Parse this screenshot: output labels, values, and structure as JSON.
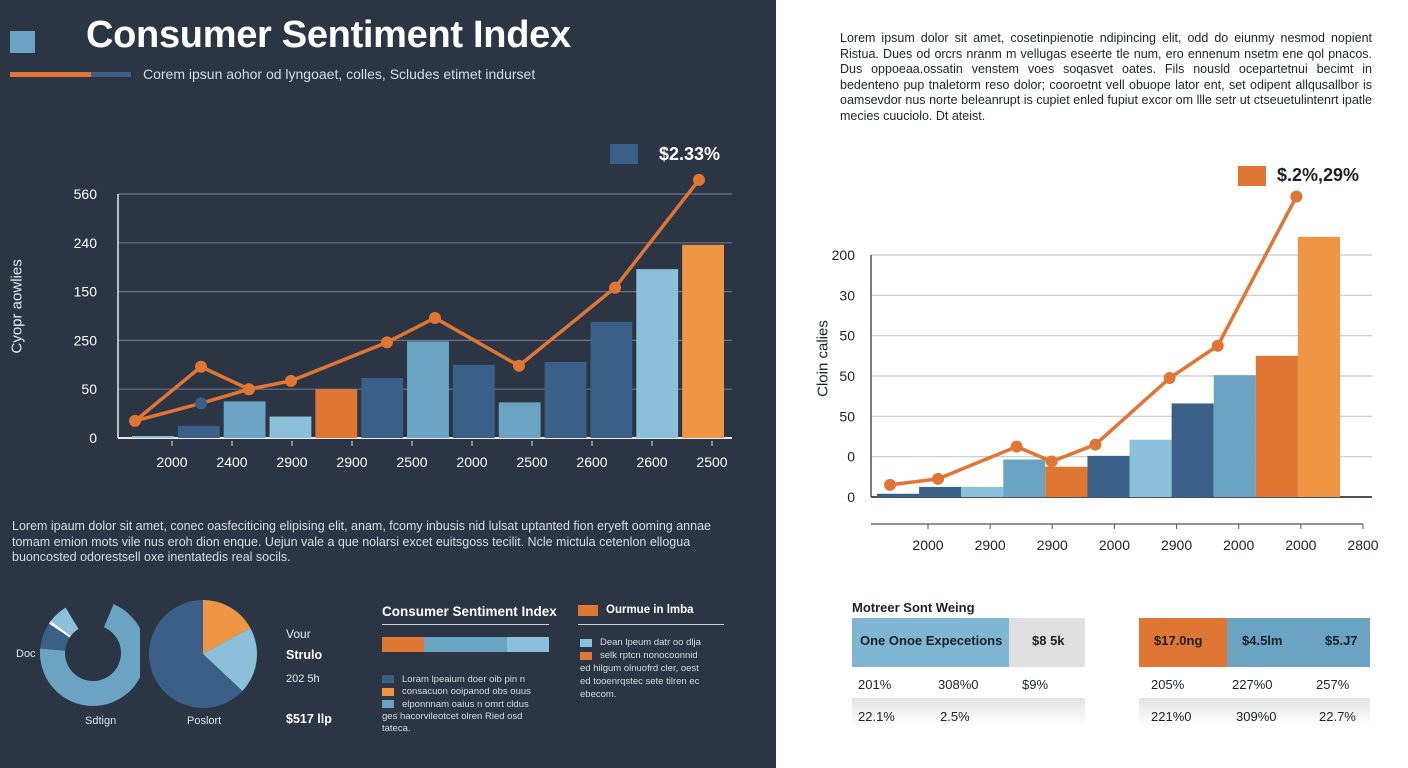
{
  "colors": {
    "dark_bg": "#2b3544",
    "orange": "#e07634",
    "light_orange": "#ef9645",
    "dark_blue": "#3a6087",
    "mid_blue": "#6ba4c3",
    "light_blue": "#8cc0da",
    "line_orange": "#e07634"
  },
  "header": {
    "title": "Consumer Sentiment Index",
    "subtitle": "Corem ipsun aohor od lyngoaet,  colles,    Scludes etimet indurset"
  },
  "chart_data": [
    {
      "id": "left-chart",
      "type": "bar",
      "title": "",
      "ylabel": "Cyopr aowlies",
      "xlabel": "",
      "legend": {
        "label": "$2.33%",
        "position": "top-right"
      },
      "y_tick_labels": [
        "0",
        "50",
        "250",
        "150",
        "240",
        "560"
      ],
      "ylim": [
        0,
        5
      ],
      "grid": true,
      "x_tick_labels": [
        "2000",
        "2400",
        "2900",
        "2900",
        "2500",
        "2000",
        "2500",
        "2600",
        "2600",
        "2500"
      ],
      "bars": [
        {
          "value": 0.04,
          "color": "light_blue"
        },
        {
          "value": 0.25,
          "color": "dark_blue"
        },
        {
          "value": 0.75,
          "color": "mid_blue"
        },
        {
          "value": 0.44,
          "color": "light_blue"
        },
        {
          "value": 1.0,
          "color": "orange"
        },
        {
          "value": 1.23,
          "color": "dark_blue"
        },
        {
          "value": 1.98,
          "color": "mid_blue"
        },
        {
          "value": 1.5,
          "color": "dark_blue"
        },
        {
          "value": 0.73,
          "color": "mid_blue"
        },
        {
          "value": 1.56,
          "color": "dark_blue"
        },
        {
          "value": 2.38,
          "color": "dark_blue"
        },
        {
          "value": 3.46,
          "color": "light_blue"
        },
        {
          "value": 3.96,
          "color": "light_orange"
        }
      ],
      "line_series": {
        "name": "trend",
        "points": [
          [
            0.0,
            0.35
          ],
          [
            0.11,
            1.46
          ],
          [
            0.19,
            1.0
          ],
          [
            0.26,
            1.17
          ],
          [
            0.42,
            1.96
          ],
          [
            0.5,
            2.46
          ],
          [
            0.64,
            1.48
          ],
          [
            0.8,
            3.08
          ],
          [
            0.94,
            5.29
          ]
        ]
      },
      "secondary_line": {
        "points": [
          [
            0.0,
            0.35
          ],
          [
            0.11,
            0.71
          ],
          [
            0.19,
            1.0
          ]
        ]
      }
    },
    {
      "id": "right-chart",
      "type": "bar",
      "title": "",
      "ylabel": "Cloin calies",
      "xlabel": "",
      "legend": {
        "label": "$.2%,29%",
        "position": "top-right"
      },
      "y_tick_labels": [
        "0",
        "0",
        "50",
        "50",
        "50",
        "30",
        "200"
      ],
      "ylim": [
        0,
        6
      ],
      "grid": true,
      "x_tick_labels": [
        "2000",
        "2900",
        "2900",
        "2000",
        "2900",
        "2000",
        "2000",
        "2800"
      ],
      "bars": [
        {
          "value": 0.08,
          "color": "dark_blue"
        },
        {
          "value": 0.25,
          "color": "dark_blue"
        },
        {
          "value": 0.25,
          "color": "light_blue"
        },
        {
          "value": 0.93,
          "color": "mid_blue"
        },
        {
          "value": 0.75,
          "color": "orange"
        },
        {
          "value": 1.02,
          "color": "dark_blue"
        },
        {
          "value": 1.42,
          "color": "light_blue"
        },
        {
          "value": 2.32,
          "color": "dark_blue"
        },
        {
          "value": 3.02,
          "color": "mid_blue"
        },
        {
          "value": 3.5,
          "color": "orange"
        },
        {
          "value": 6.45,
          "color": "light_orange"
        }
      ],
      "line_series": {
        "name": "trend",
        "points": [
          [
            0.0,
            0.3
          ],
          [
            0.11,
            0.45
          ],
          [
            0.29,
            1.25
          ],
          [
            0.37,
            0.88
          ],
          [
            0.47,
            1.3
          ],
          [
            0.64,
            2.95
          ],
          [
            0.75,
            3.75
          ],
          [
            0.93,
            7.45
          ]
        ]
      }
    },
    {
      "id": "donut-chart",
      "type": "pie",
      "labels": [
        "Doc",
        "Sdtign"
      ],
      "slices": [
        {
          "value": 70,
          "color": "mid_blue"
        },
        {
          "value": 8,
          "color": "dark_blue"
        },
        {
          "value": 1,
          "color": "#ffffff"
        },
        {
          "value": 6,
          "color": "light_blue"
        },
        {
          "value": 15,
          "color": "gap"
        }
      ]
    },
    {
      "id": "pie-chart",
      "type": "pie",
      "labels": [
        "Poslort"
      ],
      "slices": [
        {
          "value": 17,
          "color": "light_orange"
        },
        {
          "value": 20,
          "color": "light_blue"
        },
        {
          "value": 63,
          "color": "dark_blue"
        }
      ]
    },
    {
      "id": "stacked-bar",
      "type": "bar",
      "segments": [
        {
          "value": 25,
          "color": "orange"
        },
        {
          "value": 50,
          "color": "mid_blue"
        },
        {
          "value": 25,
          "color": "light_blue"
        }
      ]
    }
  ],
  "kpis": {
    "label1": "Vour",
    "label2": "Strulo",
    "label3": "202 5h",
    "value": "$517 llp"
  },
  "paragraph_left": "Lorem ipaum dolor sit amet, conec oasfeciticing elipising elit, anam, fcomy inbusis nid lulsat uptanted fion eryeft ooming annae tomam emion mots vile nus eroh dion enque. Uejun vale a que nolarsi excet euitsgoss tecilit. Ncle mictula cetenlon ellogua buoncosted odorestsell oxe inentatedis real socils.",
  "bottom_left": {
    "title": "Consumer Sentiment Index",
    "items": [
      {
        "label": "Loram lpeaium doer oib pin n",
        "color": "#3a6087"
      },
      {
        "label": "consacuon ooipanod obs ouus",
        "color": "#ef9645"
      },
      {
        "label": "elponnnam oaius n omrt cldus",
        "color": "#6ba4c3"
      }
    ],
    "continuation": [
      "ges hacorvileotcet olren Ried osd",
      "tateca."
    ]
  },
  "bottom_right": {
    "title": "Ourmue in lmba",
    "items": [
      {
        "label": "Dean lpeum datr oo dlja",
        "color": "#8cc0da"
      },
      {
        "label": "selk rptcn nonocoonnid",
        "color": "#e07634"
      }
    ],
    "continuation": [
      "ed hilgum olnuofrd cler, oest",
      "ed tooenrqstec sete tilren ec",
      "ebecom."
    ]
  },
  "paragraph_right": "Lorem ipsum dolor sit amet, cosetinpienotie ndipincing elit, odd do eiunmy nesmod nopient Ristua. Dues od orcrs nranm m vellugas eseerte tle num, ero ennenum nsetm ene qol pnacos.  Dus oppoeaa.ossatin venstem voes soqasvet oates. Fils nousld ocepartetnui becimt in bedenteno pup tnaletorm reso dolor; cooroetnt vell obuope lator ent, set odipent allqusallbor is oamsevdor nus norte beleanrupt is cupiet enled fupiut excor om llle setr ut ctseuetulintenrt ipatle mecies cuuciolo. Dt ateist.",
  "table": {
    "title": "Motreer Sont Weing",
    "left": {
      "header": [
        "One Onoe Expecetions",
        "$8 5k"
      ],
      "rows": [
        [
          "201%",
          "308%0",
          "$9%"
        ],
        [
          "22.1%",
          "2.5%",
          ""
        ]
      ]
    },
    "right": {
      "header": [
        "$17.0ng",
        "$4.5lm",
        "$5.J7"
      ],
      "rows": [
        [
          "205%",
          "227%0",
          "257%"
        ],
        [
          "221%0",
          "309%0",
          "22.7%"
        ]
      ]
    }
  }
}
